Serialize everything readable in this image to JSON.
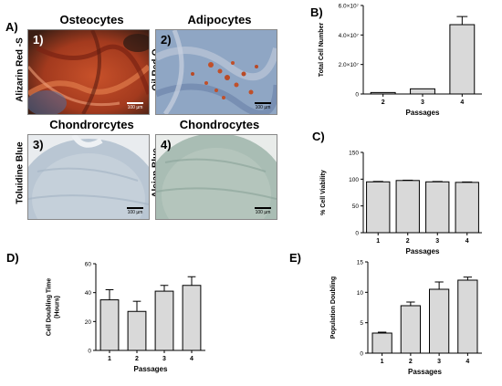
{
  "panel_a": {
    "letter": "A)",
    "images": [
      {
        "title": "Osteocytes",
        "stain": "Alizarin Red -S",
        "number": "1)",
        "scale": "100 µm"
      },
      {
        "title": "Adipocytes",
        "stain": "Oil Red-O",
        "number": "2)",
        "scale": "100 µm"
      },
      {
        "title": "Chondrorcytes",
        "stain": "Toluidine Blue",
        "number": "3)",
        "scale": "100 µm"
      },
      {
        "title": "Chondrocytes",
        "stain": "Alcian Blue",
        "number": "4)",
        "scale": "100 µm"
      }
    ]
  },
  "chart_data": [
    {
      "id": "B",
      "letter": "B)",
      "type": "bar",
      "categories": [
        "2",
        "3",
        "4"
      ],
      "values": [
        1000000,
        3500000,
        47000000
      ],
      "errors": [
        0,
        0,
        5500000
      ],
      "xlabel": "Passages",
      "ylabel": "Total Cell Number",
      "ylim": [
        0,
        60000000
      ],
      "yticks": [
        0,
        20000000,
        40000000,
        60000000
      ],
      "ytick_labels": [
        "0",
        "2.0×10⁷",
        "4.0×10⁷",
        "6.0×10⁷"
      ]
    },
    {
      "id": "C",
      "letter": "C)",
      "type": "bar",
      "categories": [
        "1",
        "2",
        "3",
        "4"
      ],
      "values": [
        95,
        97.5,
        95,
        94
      ],
      "errors": [
        0.8,
        0.6,
        0.7,
        0.8
      ],
      "xlabel": "Passages",
      "ylabel": "% Cell Viability",
      "ylim": [
        0,
        150
      ],
      "yticks": [
        0,
        50,
        100,
        150
      ],
      "ytick_labels": [
        "0",
        "50",
        "100",
        "150"
      ]
    },
    {
      "id": "D",
      "letter": "D)",
      "type": "bar",
      "categories": [
        "1",
        "2",
        "3",
        "4"
      ],
      "values": [
        35,
        27,
        41,
        45
      ],
      "errors": [
        7,
        7,
        4,
        6
      ],
      "xlabel": "Passages",
      "ylabel": "Cell Doubling Time (Hours)",
      "ylabel_lines": [
        "Cell Doubling Time",
        "(Hours)"
      ],
      "ylim": [
        0,
        60
      ],
      "yticks": [
        0,
        20,
        40,
        60
      ],
      "ytick_labels": [
        "0",
        "20",
        "40",
        "60"
      ]
    },
    {
      "id": "E",
      "letter": "E)",
      "type": "bar",
      "categories": [
        "1",
        "2",
        "3",
        "4"
      ],
      "values": [
        3.3,
        7.8,
        10.5,
        12
      ],
      "errors": [
        0.15,
        0.6,
        1.2,
        0.5
      ],
      "xlabel": "Passages",
      "ylabel": "Population Doubling",
      "ylim": [
        0,
        15
      ],
      "yticks": [
        0,
        5,
        10,
        15
      ],
      "ytick_labels": [
        "0",
        "5",
        "10",
        "15"
      ]
    }
  ],
  "colors": {
    "bar_fill": "#d9d9d9",
    "bar_stroke": "#000000",
    "axis": "#000000"
  }
}
